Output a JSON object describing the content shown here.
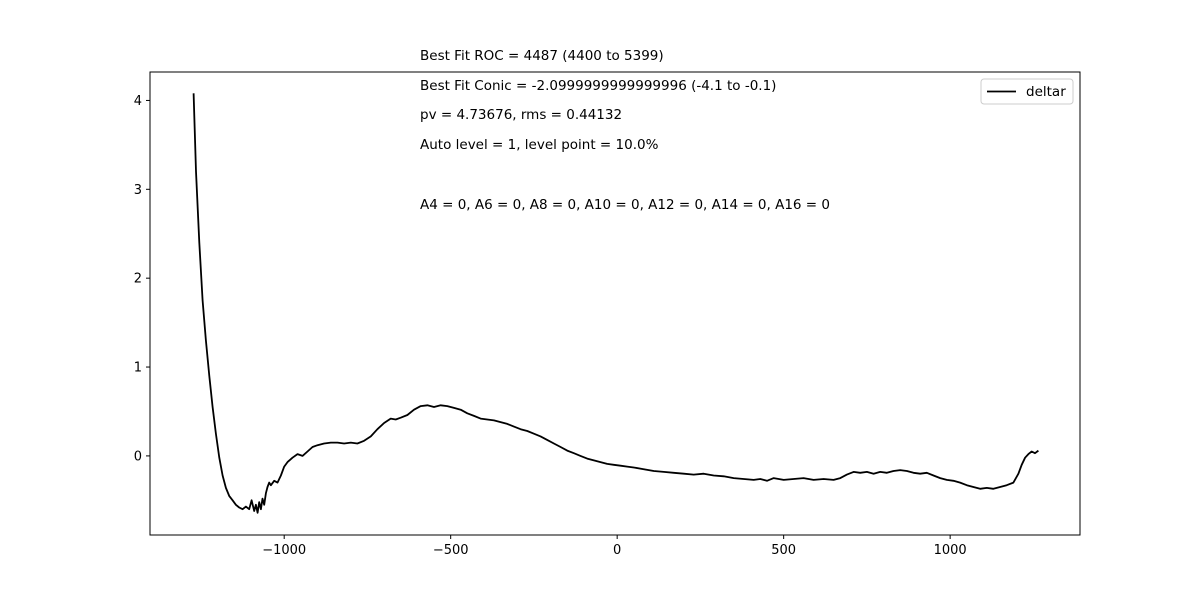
{
  "chart_data": {
    "type": "line",
    "title": "",
    "xlabel": "",
    "ylabel": "",
    "xlim": [
      -1403,
      1390
    ],
    "ylim": [
      -0.89,
      4.32
    ],
    "x_ticks": [
      -1000,
      -500,
      0,
      500,
      1000
    ],
    "x_tick_labels": [
      "−1000",
      "−500",
      "0",
      "500",
      "1000"
    ],
    "y_ticks": [
      0,
      1,
      2,
      3,
      4
    ],
    "y_tick_labels": [
      "0",
      "1",
      "2",
      "3",
      "4"
    ],
    "grid": false,
    "legend_position": "upper-right",
    "annotations": [
      "Best Fit ROC = 4487  (4400 to 5399)",
      "Best Fit Conic = -2.0999999999999996  (-4.1 to -0.1)",
      "pv = 4.73676, rms = 0.44132",
      "Auto level = 1, level point = 10.0%",
      "A4 = 0, A6 = 0, A8 = 0, A10 = 0, A12 = 0, A14 = 0, A16 = 0"
    ],
    "series": [
      {
        "name": "deltar",
        "color": "#000000",
        "x": [
          -1272,
          -1265,
          -1255,
          -1245,
          -1235,
          -1225,
          -1215,
          -1205,
          -1195,
          -1185,
          -1175,
          -1165,
          -1155,
          -1145,
          -1135,
          -1125,
          -1115,
          -1105,
          -1098,
          -1090,
          -1085,
          -1080,
          -1075,
          -1070,
          -1065,
          -1060,
          -1055,
          -1050,
          -1045,
          -1040,
          -1030,
          -1020,
          -1010,
          -1000,
          -990,
          -975,
          -960,
          -945,
          -930,
          -915,
          -900,
          -880,
          -860,
          -840,
          -820,
          -800,
          -780,
          -760,
          -740,
          -720,
          -700,
          -680,
          -665,
          -650,
          -630,
          -610,
          -590,
          -570,
          -550,
          -530,
          -510,
          -490,
          -470,
          -450,
          -430,
          -410,
          -390,
          -370,
          -350,
          -330,
          -310,
          -290,
          -270,
          -250,
          -230,
          -210,
          -190,
          -170,
          -150,
          -130,
          -110,
          -90,
          -70,
          -50,
          -30,
          -10,
          10,
          30,
          50,
          80,
          110,
          140,
          170,
          200,
          230,
          260,
          290,
          320,
          350,
          380,
          410,
          430,
          450,
          470,
          500,
          530,
          560,
          590,
          620,
          650,
          670,
          690,
          710,
          730,
          750,
          770,
          790,
          810,
          830,
          850,
          870,
          890,
          910,
          930,
          950,
          970,
          990,
          1010,
          1030,
          1050,
          1070,
          1090,
          1110,
          1130,
          1150,
          1170,
          1190,
          1205,
          1215,
          1225,
          1235,
          1245,
          1255,
          1265
        ],
        "y": [
          4.08,
          3.2,
          2.4,
          1.75,
          1.3,
          0.9,
          0.55,
          0.25,
          -0.02,
          -0.22,
          -0.36,
          -0.45,
          -0.5,
          -0.55,
          -0.58,
          -0.6,
          -0.57,
          -0.6,
          -0.5,
          -0.62,
          -0.55,
          -0.64,
          -0.52,
          -0.6,
          -0.48,
          -0.55,
          -0.42,
          -0.35,
          -0.3,
          -0.33,
          -0.28,
          -0.3,
          -0.22,
          -0.12,
          -0.07,
          -0.02,
          0.02,
          0.0,
          0.05,
          0.1,
          0.12,
          0.14,
          0.15,
          0.15,
          0.14,
          0.15,
          0.14,
          0.17,
          0.22,
          0.3,
          0.37,
          0.42,
          0.41,
          0.43,
          0.46,
          0.52,
          0.56,
          0.57,
          0.55,
          0.57,
          0.56,
          0.54,
          0.52,
          0.48,
          0.45,
          0.42,
          0.41,
          0.4,
          0.38,
          0.36,
          0.33,
          0.3,
          0.28,
          0.25,
          0.22,
          0.18,
          0.14,
          0.1,
          0.06,
          0.03,
          0.0,
          -0.03,
          -0.05,
          -0.07,
          -0.09,
          -0.1,
          -0.11,
          -0.12,
          -0.13,
          -0.15,
          -0.17,
          -0.18,
          -0.19,
          -0.2,
          -0.21,
          -0.2,
          -0.22,
          -0.23,
          -0.25,
          -0.26,
          -0.27,
          -0.26,
          -0.28,
          -0.25,
          -0.27,
          -0.26,
          -0.25,
          -0.27,
          -0.26,
          -0.27,
          -0.25,
          -0.21,
          -0.18,
          -0.19,
          -0.18,
          -0.2,
          -0.18,
          -0.19,
          -0.17,
          -0.16,
          -0.17,
          -0.19,
          -0.2,
          -0.19,
          -0.22,
          -0.25,
          -0.27,
          -0.28,
          -0.3,
          -0.33,
          -0.35,
          -0.37,
          -0.36,
          -0.37,
          -0.35,
          -0.33,
          -0.3,
          -0.2,
          -0.1,
          -0.02,
          0.02,
          0.05,
          0.03,
          0.06
        ]
      }
    ]
  }
}
